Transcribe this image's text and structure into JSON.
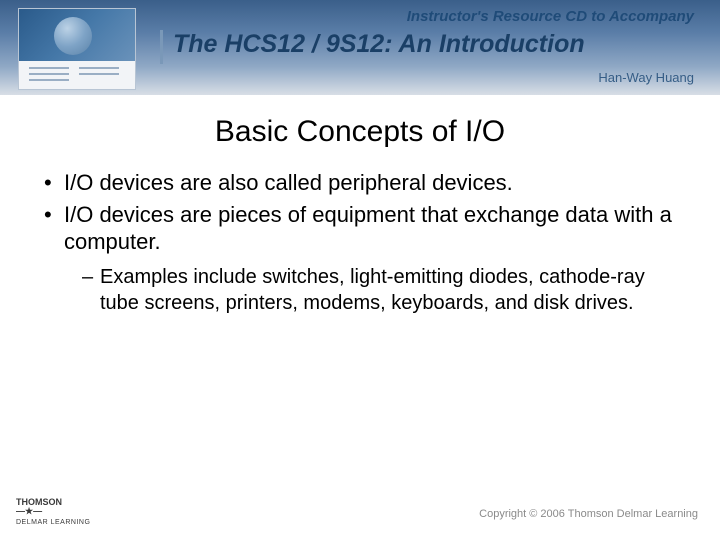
{
  "header": {
    "subtitle": "Instructor's Resource CD to Accompany",
    "subtitle_color": "#1f4b78",
    "subtitle_fontsize": 15,
    "title": "The HCS12 / 9S12: An Introduction",
    "title_color": "#1a3f66",
    "title_fontsize": 25,
    "author": "Han-Way Huang",
    "author_color": "#355d86",
    "author_fontsize": 13
  },
  "slide": {
    "title": "Basic Concepts of I/O",
    "title_fontsize": 30,
    "title_color": "#000000",
    "bullets_l1": [
      "I/O devices are also called peripheral devices.",
      "I/O devices are pieces of equipment that exchange data with a computer."
    ],
    "bullets_l2": [
      "Examples include switches, light-emitting diodes, cathode-ray tube screens, printers, modems, keyboards, and disk drives."
    ]
  },
  "footer": {
    "publisher_top": "THOMSON",
    "publisher_bottom": "DELMAR LEARNING",
    "copyright": "Copyright © 2006 Thomson Delmar Learning",
    "copyright_color": "#8a8a8a",
    "copyright_fontsize": 11
  }
}
